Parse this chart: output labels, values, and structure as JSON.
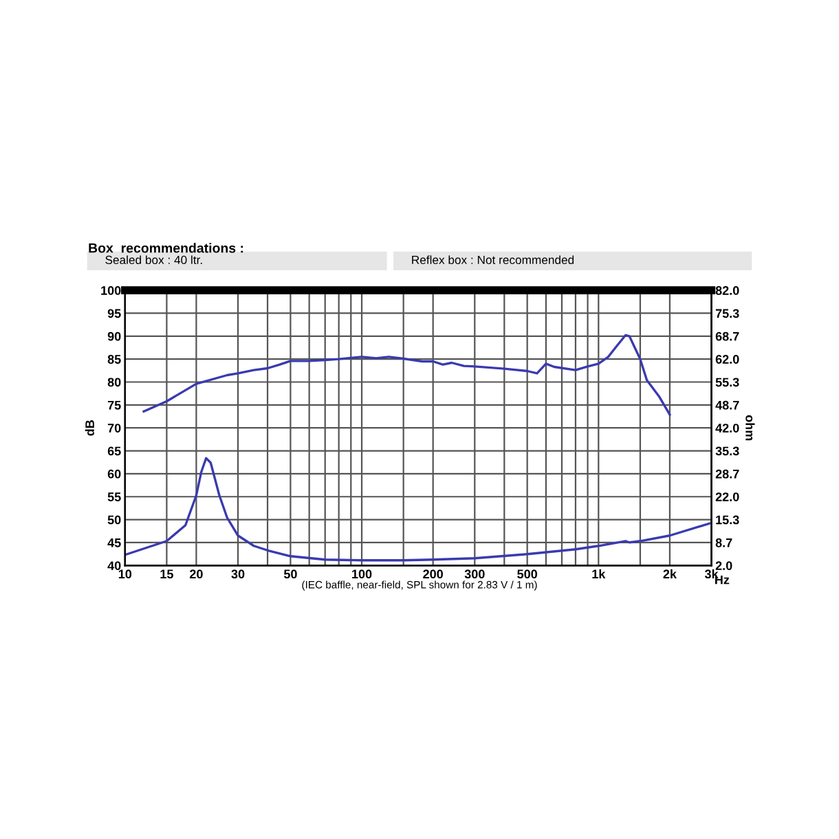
{
  "chart_data": {
    "type": "line",
    "title": "Box  recommendations :",
    "xlabel": "Hz",
    "ylabel": "dB",
    "y2label": "ohm",
    "annotations": [
      "Sealed box : 40 ltr.",
      "Reflex box : Not recommended",
      "(IEC baffle, near-field, SPL shown for 2.83 V / 1 m)"
    ],
    "log": "x",
    "grid": true,
    "line_style": "solid",
    "xlim": [
      10,
      3000
    ],
    "ylim": [
      40,
      100
    ],
    "y2lim": [
      2,
      82
    ],
    "xticks": [
      10,
      15,
      20,
      30,
      {
        "value": 40,
        "label": null
      },
      50,
      {
        "value": 60,
        "label": null
      },
      {
        "value": 70,
        "label": null
      },
      {
        "value": 80,
        "label": null
      },
      {
        "value": 90,
        "label": null
      },
      100,
      {
        "value": 150,
        "label": null
      },
      200,
      300,
      {
        "value": 400,
        "label": null
      },
      500,
      {
        "value": 600,
        "label": null
      },
      {
        "value": 700,
        "label": null
      },
      {
        "value": 800,
        "label": null
      },
      {
        "value": 900,
        "label": null
      },
      {
        "value": 1000,
        "label": "1k"
      },
      {
        "value": 1500,
        "label": null
      },
      {
        "value": 2000,
        "label": "2k"
      },
      {
        "value": 3000,
        "label": "3k"
      }
    ],
    "yticks": [
      40,
      45,
      50,
      55,
      60,
      65,
      70,
      75,
      80,
      85,
      90,
      95,
      100
    ],
    "y2ticks": [
      {
        "value": 2,
        "label": "2.0"
      },
      {
        "value": 8.667,
        "label": "8.7"
      },
      {
        "value": 15.333,
        "label": "15.3"
      },
      {
        "value": 22,
        "label": "22.0"
      },
      {
        "value": 28.667,
        "label": "28.7"
      },
      {
        "value": 35.333,
        "label": "35.3"
      },
      {
        "value": 42,
        "label": "42.0"
      },
      {
        "value": 48.667,
        "label": "48.7"
      },
      {
        "value": 55.333,
        "label": "55.3"
      },
      {
        "value": 62,
        "label": "62.0"
      },
      {
        "value": 68.667,
        "label": "68.7"
      },
      {
        "value": 75.333,
        "label": "75.3"
      },
      {
        "value": 82,
        "label": "82.0"
      }
    ],
    "series": [
      {
        "color": "#3a3ab0",
        "x": [
          12,
          15,
          20,
          27,
          30,
          35,
          40,
          45,
          50,
          60,
          70,
          80,
          100,
          115,
          130,
          150,
          180,
          200,
          220,
          240,
          270,
          300,
          400,
          500,
          550,
          600,
          650,
          800,
          900,
          1000,
          1100,
          1200,
          1300,
          1350,
          1500,
          1600,
          1800,
          2000
        ],
        "values": [
          73.6,
          75.8,
          79.6,
          81.5,
          81.9,
          82.6,
          83.0,
          83.8,
          84.6,
          84.6,
          84.8,
          85.0,
          85.5,
          85.2,
          85.5,
          85.1,
          84.5,
          84.5,
          83.8,
          84.2,
          83.5,
          83.4,
          82.9,
          82.4,
          81.9,
          84.0,
          83.3,
          82.6,
          83.4,
          84.0,
          85.5,
          88.0,
          90.2,
          90.0,
          85.0,
          80.4,
          76.9,
          72.9
        ]
      },
      {
        "color": "#3a3ab0",
        "axis": "y2",
        "x": [
          10,
          15,
          18,
          20,
          21,
          22,
          23,
          25,
          27,
          30,
          35,
          40,
          50,
          70,
          100,
          150,
          200,
          300,
          500,
          800,
          1000,
          1300,
          1350,
          1500,
          2000,
          3000
        ],
        "values": [
          5.1,
          9.1,
          13.7,
          22.4,
          29.2,
          33.2,
          31.9,
          22.5,
          15.9,
          10.7,
          7.7,
          6.4,
          4.7,
          3.7,
          3.5,
          3.5,
          3.7,
          4.1,
          5.3,
          6.7,
          7.7,
          9.1,
          8.7,
          9.1,
          10.7,
          14.4
        ]
      }
    ]
  }
}
